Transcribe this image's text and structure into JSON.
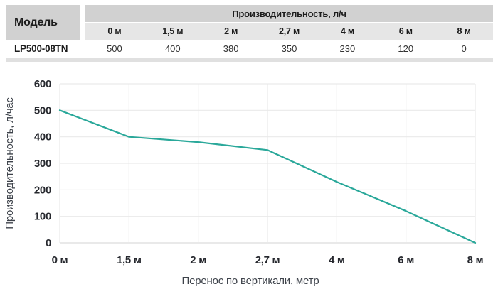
{
  "table": {
    "model_header": "Модель",
    "group_header": "Производительность, л/ч",
    "distances": [
      "0 м",
      "1,5 м",
      "2 м",
      "2,7 м",
      "4 м",
      "6 м",
      "8 м"
    ],
    "rows": [
      {
        "model": "LP500-08TN",
        "values": [
          "500",
          "400",
          "380",
          "350",
          "230",
          "120",
          "0"
        ]
      }
    ]
  },
  "chart_data": {
    "type": "line",
    "title": "",
    "categories": [
      "0 м",
      "1,5 м",
      "2 м",
      "2,7 м",
      "4 м",
      "6 м",
      "8 м"
    ],
    "values": [
      500,
      400,
      380,
      350,
      230,
      120,
      0
    ],
    "series": [
      {
        "name": "LP500-08TN",
        "values": [
          500,
          400,
          380,
          350,
          230,
          120,
          0
        ]
      }
    ],
    "xlabel": "Перенос по вертикали, метр",
    "ylabel": "Производительность, л/час",
    "ylim": [
      0,
      600
    ],
    "y_ticks": [
      0,
      100,
      200,
      300,
      400,
      500,
      600
    ],
    "grid": true,
    "legend": "none",
    "line_color": "#2aa89a"
  },
  "colors": {
    "header_gray": "#d1d1d1",
    "subheader_gray": "#e6e6e6",
    "bottom_strip": "#e0e0e0",
    "gridline": "#e9e9e9",
    "axis_line": "#dcdcdc",
    "line": "#2aa89a",
    "tick_text": "#26282e",
    "title_text": "#3d424a"
  }
}
